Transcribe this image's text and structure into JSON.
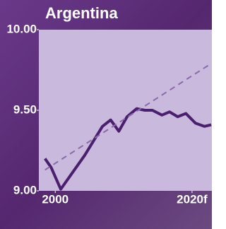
{
  "chart_data": {
    "type": "line",
    "title": "Argentina",
    "x": [
      1998.5,
      1999.4,
      2000.8,
      2002.3,
      2004.3,
      2006.9,
      2008.1,
      2009.3,
      2010.5,
      2011.9,
      2013.1,
      2014.2,
      2015.6,
      2016.7,
      2017.9,
      2019.1,
      2020.5,
      2021.8,
      2022.8
    ],
    "series": [
      {
        "color": "#4a1f6e",
        "values": [
          9.2,
          9.145,
          9.01,
          9.1,
          9.22,
          9.4,
          9.44,
          9.37,
          9.46,
          9.51,
          9.5,
          9.5,
          9.47,
          9.49,
          9.46,
          9.48,
          9.42,
          9.4,
          9.41
        ]
      },
      {
        "color": "#8a6aaa",
        "dashed": true,
        "x": [
          1998.5,
          2022.8
        ],
        "values": [
          9.13,
          9.79
        ]
      }
    ],
    "xlim": [
      1997.6,
      2022.9
    ],
    "ylim": [
      9,
      10
    ],
    "xticks": [
      {
        "value": 2000,
        "label": "2000"
      },
      {
        "value": 2020,
        "label": "2020f"
      }
    ],
    "yticks": [
      {
        "value": 9,
        "label": "9.00"
      },
      {
        "value": 9.5,
        "label": "9.50"
      },
      {
        "value": 10,
        "label": "10.00"
      }
    ]
  }
}
